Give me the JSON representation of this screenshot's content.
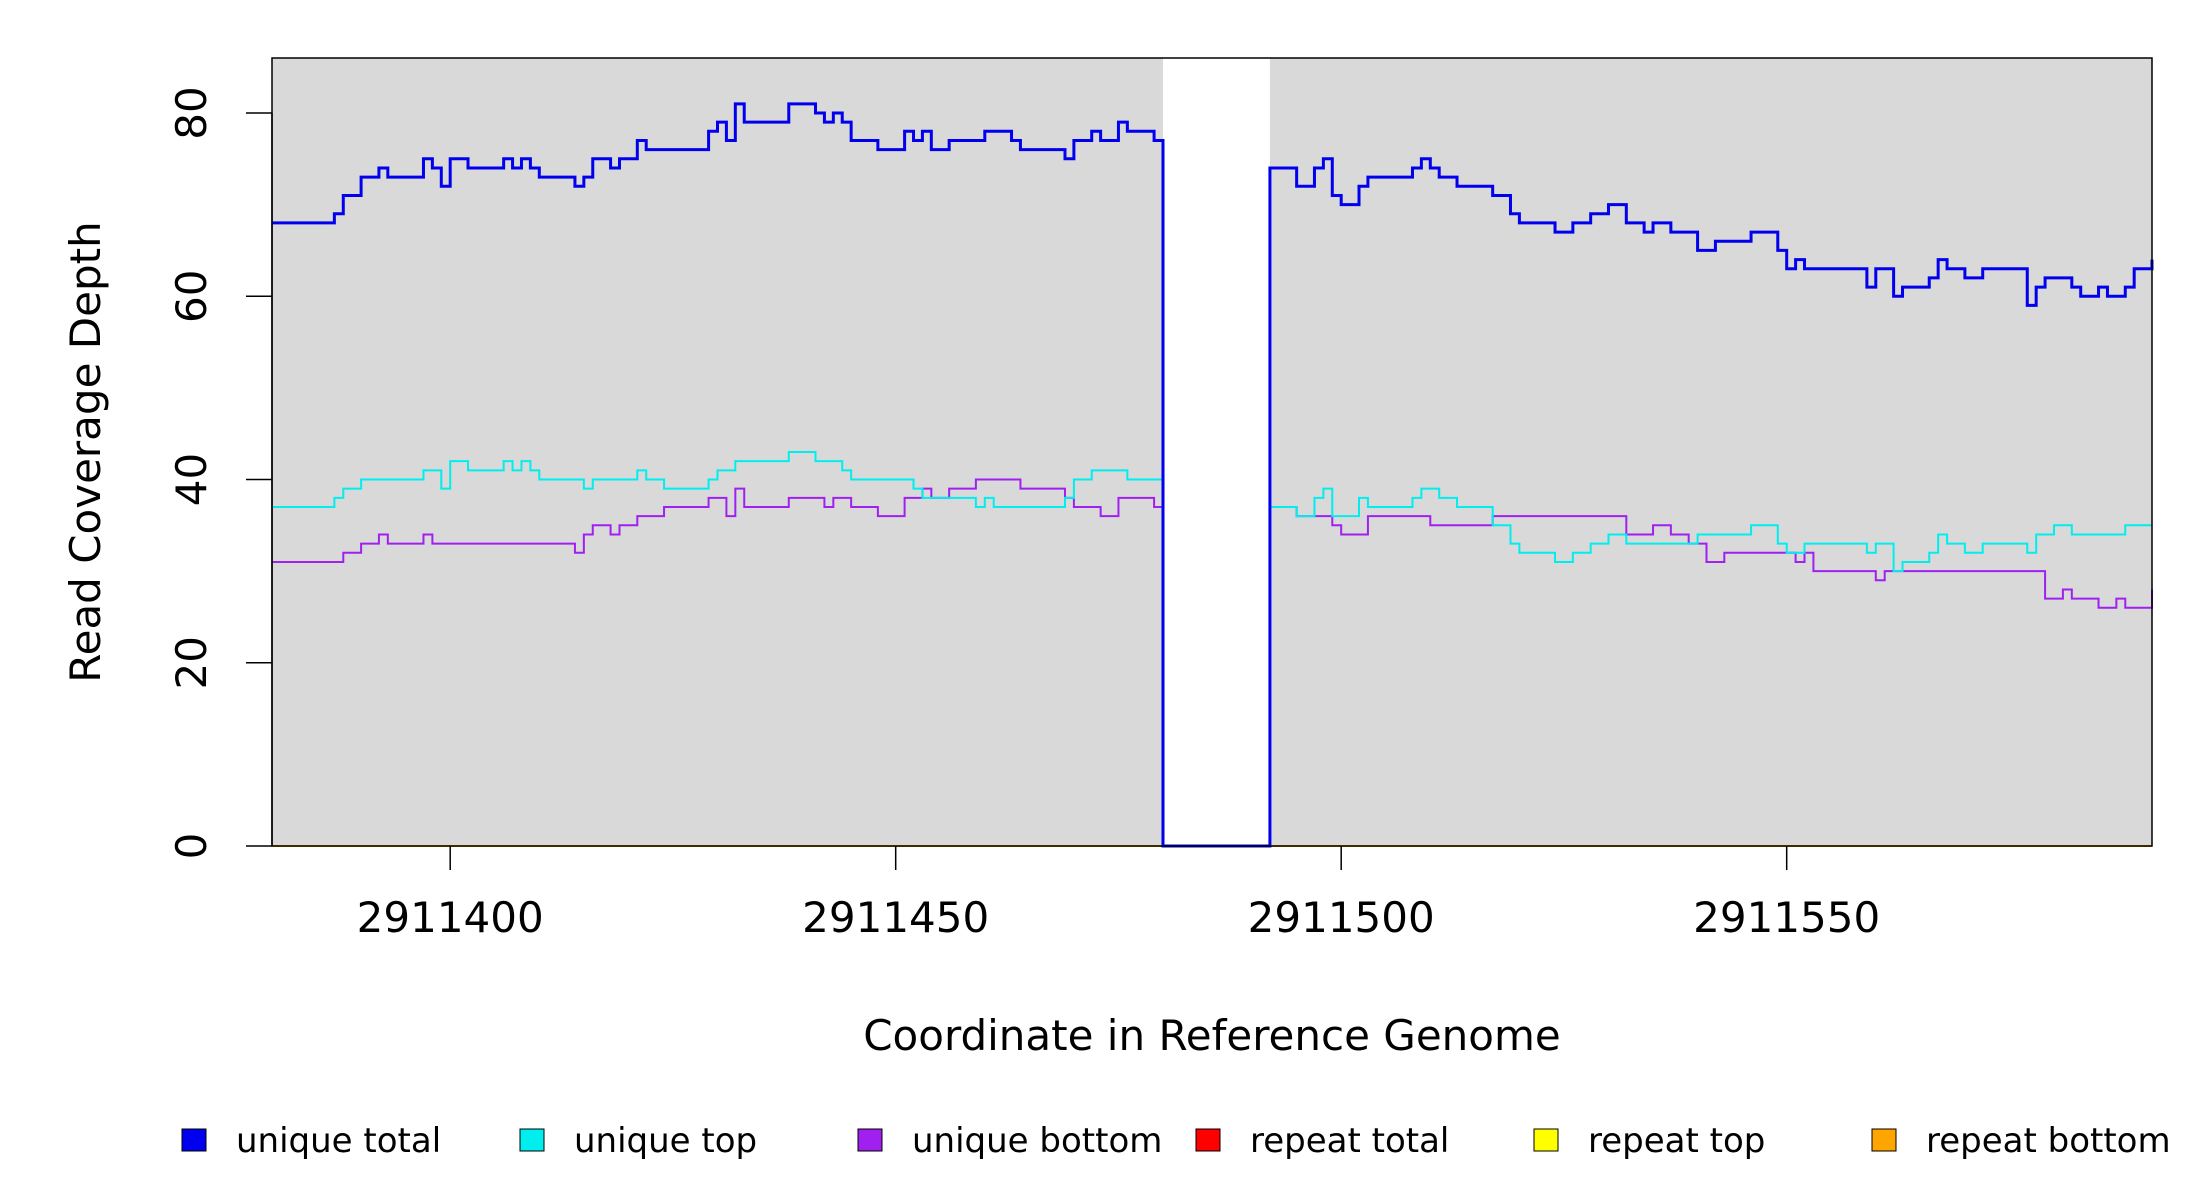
{
  "chart_data": {
    "type": "line",
    "step": true,
    "title": "",
    "xlabel": "Coordinate in Reference Genome",
    "ylabel": "Read Coverage Depth",
    "xlim": [
      2911380,
      2911591
    ],
    "ylim": [
      0,
      86
    ],
    "xticks": [
      2911400,
      2911450,
      2911500,
      2911550
    ],
    "yticks": [
      0,
      20,
      40,
      60,
      80
    ],
    "background_color": "#d9d9d9",
    "gap": [
      2911480,
      2911492
    ],
    "legend_position": "bottom",
    "series": [
      {
        "name": "unique total",
        "color": "#0000ee",
        "points": [
          [
            2911380,
            68
          ],
          [
            2911387,
            69
          ],
          [
            2911388,
            71
          ],
          [
            2911390,
            73
          ],
          [
            2911392,
            74
          ],
          [
            2911393,
            73
          ],
          [
            2911397,
            75
          ],
          [
            2911398,
            74
          ],
          [
            2911399,
            72
          ],
          [
            2911400,
            75
          ],
          [
            2911402,
            74
          ],
          [
            2911406,
            75
          ],
          [
            2911407,
            74
          ],
          [
            2911408,
            75
          ],
          [
            2911409,
            74
          ],
          [
            2911410,
            73
          ],
          [
            2911414,
            72
          ],
          [
            2911415,
            73
          ],
          [
            2911416,
            75
          ],
          [
            2911418,
            74
          ],
          [
            2911419,
            75
          ],
          [
            2911421,
            77
          ],
          [
            2911422,
            76
          ],
          [
            2911429,
            78
          ],
          [
            2911430,
            79
          ],
          [
            2911431,
            77
          ],
          [
            2911432,
            81
          ],
          [
            2911433,
            79
          ],
          [
            2911438,
            81
          ],
          [
            2911441,
            80
          ],
          [
            2911442,
            79
          ],
          [
            2911443,
            80
          ],
          [
            2911444,
            79
          ],
          [
            2911445,
            77
          ],
          [
            2911448,
            76
          ],
          [
            2911451,
            78
          ],
          [
            2911452,
            77
          ],
          [
            2911453,
            78
          ],
          [
            2911454,
            76
          ],
          [
            2911456,
            77
          ],
          [
            2911460,
            78
          ],
          [
            2911463,
            77
          ],
          [
            2911464,
            76
          ],
          [
            2911469,
            75
          ],
          [
            2911470,
            77
          ],
          [
            2911472,
            78
          ],
          [
            2911473,
            77
          ],
          [
            2911475,
            79
          ],
          [
            2911476,
            78
          ],
          [
            2911479,
            77
          ],
          [
            2911480,
            0
          ],
          [
            2911492,
            74
          ],
          [
            2911495,
            72
          ],
          [
            2911497,
            74
          ],
          [
            2911498,
            75
          ],
          [
            2911499,
            71
          ],
          [
            2911500,
            70
          ],
          [
            2911502,
            72
          ],
          [
            2911503,
            73
          ],
          [
            2911508,
            74
          ],
          [
            2911509,
            75
          ],
          [
            2911510,
            74
          ],
          [
            2911511,
            73
          ],
          [
            2911513,
            72
          ],
          [
            2911517,
            71
          ],
          [
            2911519,
            69
          ],
          [
            2911520,
            68
          ],
          [
            2911524,
            67
          ],
          [
            2911526,
            68
          ],
          [
            2911528,
            69
          ],
          [
            2911530,
            70
          ],
          [
            2911532,
            68
          ],
          [
            2911534,
            67
          ],
          [
            2911535,
            68
          ],
          [
            2911537,
            67
          ],
          [
            2911540,
            65
          ],
          [
            2911542,
            66
          ],
          [
            2911546,
            67
          ],
          [
            2911549,
            65
          ],
          [
            2911550,
            63
          ],
          [
            2911551,
            64
          ],
          [
            2911552,
            63
          ],
          [
            2911559,
            61
          ],
          [
            2911560,
            63
          ],
          [
            2911562,
            60
          ],
          [
            2911563,
            61
          ],
          [
            2911566,
            62
          ],
          [
            2911567,
            64
          ],
          [
            2911568,
            63
          ],
          [
            2911570,
            62
          ],
          [
            2911572,
            63
          ],
          [
            2911577,
            59
          ],
          [
            2911578,
            61
          ],
          [
            2911579,
            62
          ],
          [
            2911582,
            61
          ],
          [
            2911583,
            60
          ],
          [
            2911585,
            61
          ],
          [
            2911586,
            60
          ],
          [
            2911588,
            61
          ],
          [
            2911589,
            63
          ],
          [
            2911591,
            64
          ]
        ]
      },
      {
        "name": "unique top",
        "color": "#00eeee",
        "points": [
          [
            2911380,
            37
          ],
          [
            2911387,
            38
          ],
          [
            2911388,
            39
          ],
          [
            2911390,
            40
          ],
          [
            2911397,
            41
          ],
          [
            2911399,
            39
          ],
          [
            2911400,
            42
          ],
          [
            2911402,
            41
          ],
          [
            2911406,
            42
          ],
          [
            2911407,
            41
          ],
          [
            2911408,
            42
          ],
          [
            2911409,
            41
          ],
          [
            2911410,
            40
          ],
          [
            2911415,
            39
          ],
          [
            2911416,
            40
          ],
          [
            2911421,
            41
          ],
          [
            2911422,
            40
          ],
          [
            2911424,
            39
          ],
          [
            2911429,
            40
          ],
          [
            2911430,
            41
          ],
          [
            2911432,
            42
          ],
          [
            2911438,
            43
          ],
          [
            2911441,
            42
          ],
          [
            2911444,
            41
          ],
          [
            2911445,
            40
          ],
          [
            2911452,
            39
          ],
          [
            2911453,
            38
          ],
          [
            2911459,
            37
          ],
          [
            2911460,
            38
          ],
          [
            2911461,
            37
          ],
          [
            2911469,
            38
          ],
          [
            2911470,
            40
          ],
          [
            2911472,
            41
          ],
          [
            2911476,
            40
          ],
          [
            2911480,
            0
          ],
          [
            2911492,
            37
          ],
          [
            2911495,
            36
          ],
          [
            2911497,
            38
          ],
          [
            2911498,
            39
          ],
          [
            2911499,
            36
          ],
          [
            2911502,
            38
          ],
          [
            2911503,
            37
          ],
          [
            2911508,
            38
          ],
          [
            2911509,
            39
          ],
          [
            2911511,
            38
          ],
          [
            2911513,
            37
          ],
          [
            2911517,
            35
          ],
          [
            2911519,
            33
          ],
          [
            2911520,
            32
          ],
          [
            2911524,
            31
          ],
          [
            2911526,
            32
          ],
          [
            2911528,
            33
          ],
          [
            2911530,
            34
          ],
          [
            2911532,
            33
          ],
          [
            2911540,
            34
          ],
          [
            2911546,
            35
          ],
          [
            2911549,
            33
          ],
          [
            2911550,
            32
          ],
          [
            2911552,
            33
          ],
          [
            2911559,
            32
          ],
          [
            2911560,
            33
          ],
          [
            2911562,
            30
          ],
          [
            2911563,
            31
          ],
          [
            2911566,
            32
          ],
          [
            2911567,
            34
          ],
          [
            2911568,
            33
          ],
          [
            2911570,
            32
          ],
          [
            2911572,
            33
          ],
          [
            2911577,
            32
          ],
          [
            2911578,
            34
          ],
          [
            2911580,
            35
          ],
          [
            2911582,
            34
          ],
          [
            2911588,
            35
          ],
          [
            2911591,
            35
          ]
        ]
      },
      {
        "name": "unique bottom",
        "color": "#a020f0",
        "points": [
          [
            2911380,
            31
          ],
          [
            2911388,
            32
          ],
          [
            2911390,
            33
          ],
          [
            2911392,
            34
          ],
          [
            2911393,
            33
          ],
          [
            2911397,
            34
          ],
          [
            2911398,
            33
          ],
          [
            2911414,
            32
          ],
          [
            2911415,
            34
          ],
          [
            2911416,
            35
          ],
          [
            2911418,
            34
          ],
          [
            2911419,
            35
          ],
          [
            2911421,
            36
          ],
          [
            2911424,
            37
          ],
          [
            2911429,
            38
          ],
          [
            2911431,
            36
          ],
          [
            2911432,
            39
          ],
          [
            2911433,
            37
          ],
          [
            2911438,
            38
          ],
          [
            2911442,
            37
          ],
          [
            2911443,
            38
          ],
          [
            2911445,
            37
          ],
          [
            2911448,
            36
          ],
          [
            2911451,
            38
          ],
          [
            2911453,
            39
          ],
          [
            2911454,
            38
          ],
          [
            2911456,
            39
          ],
          [
            2911459,
            40
          ],
          [
            2911464,
            39
          ],
          [
            2911469,
            38
          ],
          [
            2911470,
            37
          ],
          [
            2911473,
            36
          ],
          [
            2911475,
            38
          ],
          [
            2911479,
            37
          ],
          [
            2911480,
            0
          ],
          [
            2911492,
            37
          ],
          [
            2911495,
            36
          ],
          [
            2911499,
            35
          ],
          [
            2911500,
            34
          ],
          [
            2911503,
            36
          ],
          [
            2911510,
            35
          ],
          [
            2911517,
            36
          ],
          [
            2911532,
            34
          ],
          [
            2911535,
            35
          ],
          [
            2911537,
            34
          ],
          [
            2911539,
            33
          ],
          [
            2911541,
            31
          ],
          [
            2911543,
            32
          ],
          [
            2911551,
            31
          ],
          [
            2911552,
            32
          ],
          [
            2911553,
            30
          ],
          [
            2911560,
            29
          ],
          [
            2911561,
            30
          ],
          [
            2911579,
            27
          ],
          [
            2911581,
            28
          ],
          [
            2911582,
            27
          ],
          [
            2911585,
            26
          ],
          [
            2911587,
            27
          ],
          [
            2911588,
            26
          ],
          [
            2911591,
            28
          ]
        ]
      },
      {
        "name": "repeat total",
        "color": "#ff0000",
        "points": [
          [
            2911380,
            0
          ],
          [
            2911591,
            0
          ]
        ]
      },
      {
        "name": "repeat top",
        "color": "#ffff00",
        "points": [
          [
            2911380,
            0
          ],
          [
            2911591,
            0
          ]
        ]
      },
      {
        "name": "repeat bottom",
        "color": "#ffa500",
        "points": [
          [
            2911380,
            0
          ],
          [
            2911591,
            0
          ]
        ]
      }
    ]
  }
}
